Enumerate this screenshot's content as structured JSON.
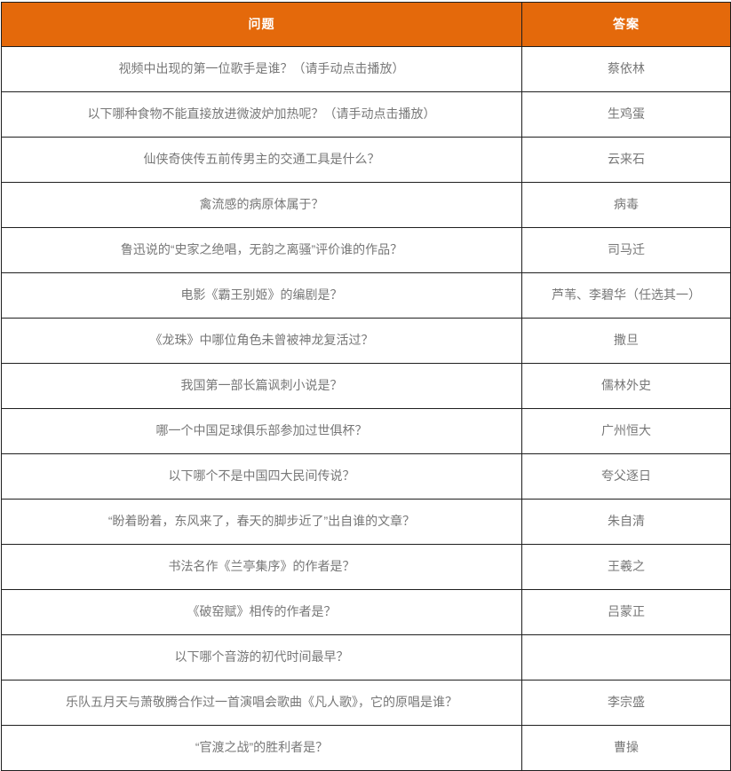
{
  "colors": {
    "header_bg": "#e4690b",
    "header_text": "#ffffff",
    "border": "#1f1f1f",
    "cell_text": "#777777"
  },
  "table": {
    "headers": {
      "question": "问题",
      "answer": "答案"
    },
    "rows": [
      {
        "question": "视频中出现的第一位歌手是谁？（请手动点击播放）",
        "answer": "蔡依林"
      },
      {
        "question": "以下哪种食物不能直接放进微波炉加热呢？（请手动点击播放）",
        "answer": "生鸡蛋"
      },
      {
        "question": "仙侠奇侠传五前传男主的交通工具是什么？",
        "answer": "云来石"
      },
      {
        "question": "禽流感的病原体属于？",
        "answer": "病毒"
      },
      {
        "question": "鲁迅说的“史家之绝唱，无韵之离骚”评价谁的作品？",
        "answer": "司马迁"
      },
      {
        "question": "电影《霸王别姬》的编剧是？",
        "answer": "芦苇、李碧华（任选其一）"
      },
      {
        "question": "《龙珠》中哪位角色未曾被神龙复活过？",
        "answer": "撒旦"
      },
      {
        "question": "我国第一部长篇讽刺小说是？",
        "answer": "儒林外史"
      },
      {
        "question": "哪一个中国足球俱乐部参加过世俱杯？",
        "answer": "广州恒大"
      },
      {
        "question": "以下哪个不是中国四大民间传说？",
        "answer": "夸父逐日"
      },
      {
        "question": "“盼着盼着，东风来了，春天的脚步近了”出自谁的文章？",
        "answer": "朱自清"
      },
      {
        "question": "书法名作《兰亭集序》的作者是？",
        "answer": "王羲之"
      },
      {
        "question": "《破窑赋》相传的作者是？",
        "answer": "吕蒙正"
      },
      {
        "question": "以下哪个音游的初代时间最早？",
        "answer": ""
      },
      {
        "question": "乐队五月天与萧敬腾合作过一首演唱会歌曲《凡人歌》，它的原唱是谁？",
        "answer": "李宗盛"
      },
      {
        "question": "“官渡之战”的胜利者是？",
        "answer": "曹操"
      }
    ]
  }
}
